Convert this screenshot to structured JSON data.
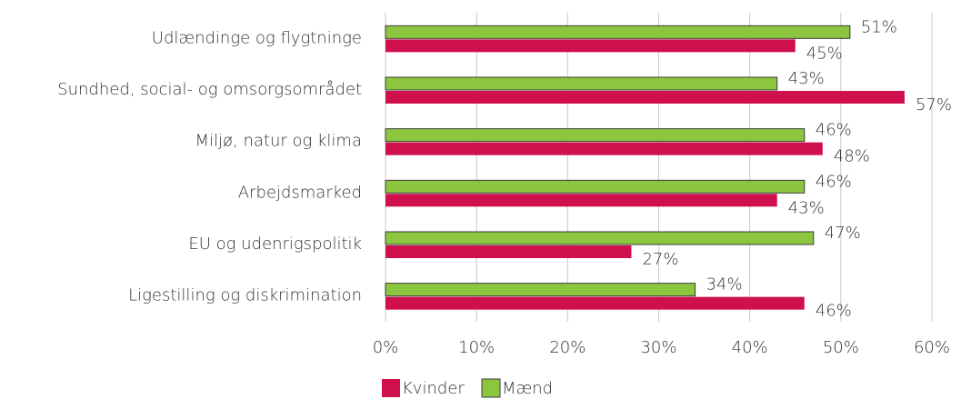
{
  "chart_data": {
    "type": "hbar",
    "categories": [
      "Udlændinge og flygtninge",
      "Sundhed, social- og omsorgsområdet",
      "Miljø, natur og klima",
      "Arbejdsmarked",
      "EU og udenrigspolitik",
      "Ligestilling og diskrimination"
    ],
    "series": [
      {
        "name": "Kvinder",
        "color": "#d0104c",
        "values": [
          45,
          57,
          48,
          43,
          27,
          46
        ],
        "value_labels": [
          "45%",
          "57%",
          "48%",
          "43%",
          "27%",
          "46%"
        ]
      },
      {
        "name": "Mænd",
        "color": "#8cc63e",
        "values": [
          51,
          43,
          46,
          46,
          47,
          34
        ],
        "value_labels": [
          "51%",
          "43%",
          "46%",
          "46%",
          "47%",
          "34%"
        ]
      }
    ],
    "xlim": [
      0,
      60
    ],
    "xticks": [
      {
        "value": 0,
        "label": "0%"
      },
      {
        "value": 10,
        "label": "10%"
      },
      {
        "value": 20,
        "label": "20%"
      },
      {
        "value": 30,
        "label": "30%"
      },
      {
        "value": 40,
        "label": "40%"
      },
      {
        "value": 50,
        "label": "50%"
      },
      {
        "value": 60,
        "label": "60%"
      }
    ],
    "grid": true,
    "legend": "bottom"
  }
}
